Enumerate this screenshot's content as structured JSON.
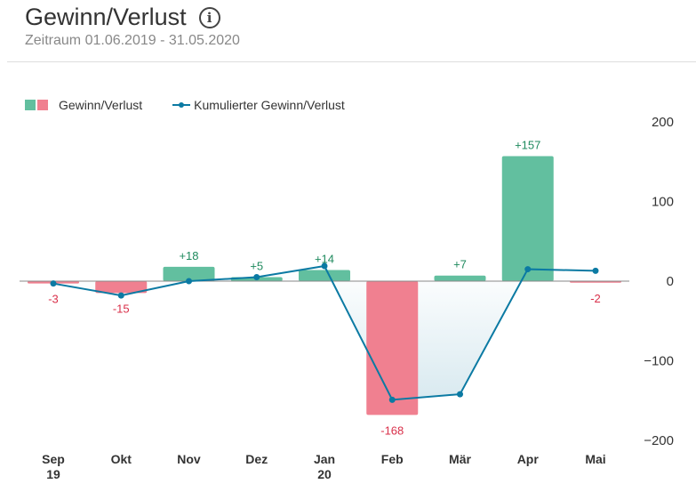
{
  "header": {
    "title": "Gewinn/Verlust",
    "subtitle": "Zeitraum 01.06.2019 - 31.05.2020"
  },
  "colors": {
    "positive": "#62bf9f",
    "negative": "#f08090",
    "line": "#0b7aa3",
    "label_pos": "#1f8a5e",
    "label_neg": "#d9304a"
  },
  "chart_data": {
    "type": "bar",
    "title": "Gewinn/Verlust",
    "legend": [
      "Gewinn/Verlust",
      "Kumulierter Gewinn/Verlust"
    ],
    "legend_position": "top-left",
    "categories": [
      "Sep",
      "Okt",
      "Nov",
      "Dez",
      "Jan",
      "Feb",
      "Mär",
      "Apr",
      "Mai"
    ],
    "category_sublabels": [
      "19",
      "",
      "",
      "",
      "20",
      "",
      "",
      "",
      ""
    ],
    "series": [
      {
        "name": "Gewinn/Verlust",
        "type": "bar",
        "values": [
          -3,
          -15,
          18,
          5,
          14,
          -168,
          7,
          157,
          -2
        ],
        "labels": [
          "-3",
          "-15",
          "+18",
          "+5",
          "+14",
          "-168",
          "+7",
          "+157",
          "-2"
        ]
      },
      {
        "name": "Kumulierter Gewinn/Verlust",
        "type": "line",
        "values": [
          -3,
          -18,
          0,
          5,
          19,
          -149,
          -142,
          15,
          13
        ]
      }
    ],
    "yticks": [
      200,
      100,
      0,
      -100,
      -200
    ],
    "ylim": [
      -200,
      200
    ],
    "yaxis_position": "right"
  }
}
